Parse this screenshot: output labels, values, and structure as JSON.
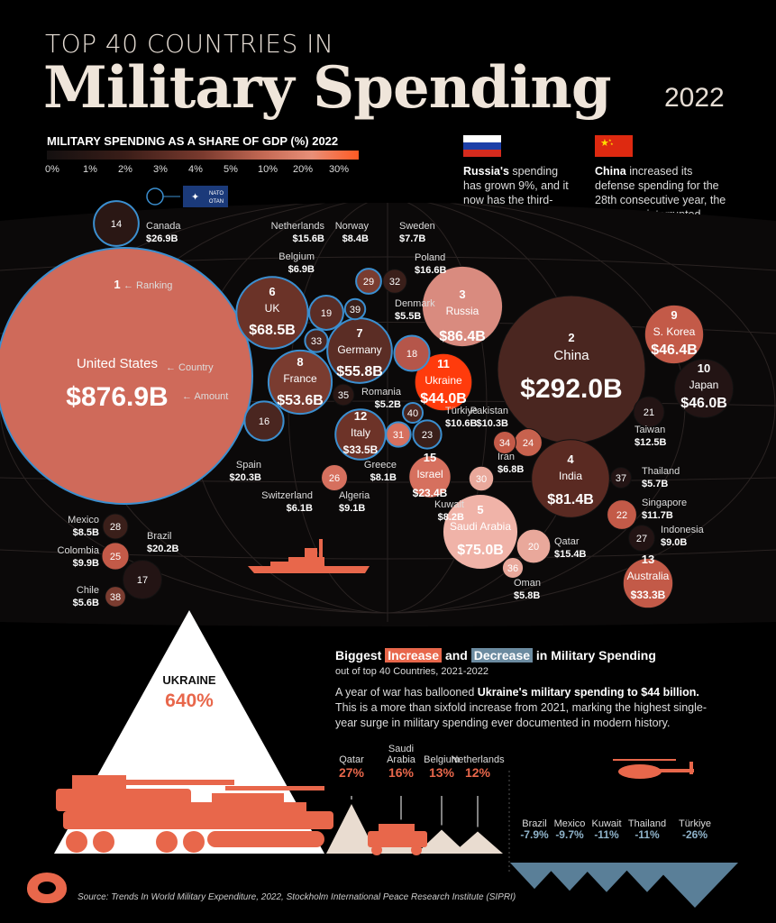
{
  "header": {
    "top": "TOP 40 COUNTRIES IN",
    "main": "Military Spending",
    "year": "2022"
  },
  "legend": {
    "title": "MILITARY SPENDING AS A SHARE OF GDP (%) 2022",
    "ticks": [
      "0%",
      "1%",
      "2%",
      "3%",
      "4%",
      "5%",
      "10%",
      "20%",
      "30%"
    ],
    "colors": {
      "low": "#141010",
      "mid": "#7a3a2e",
      "high": "#e88f78",
      "max": "#ff5a23"
    }
  },
  "nato": {
    "label": "NATO OTAN"
  },
  "notes": {
    "russia": {
      "bold": "Russia's",
      "text": " spending has grown 9%, and it now has the third-largest military budget, overtaking India."
    },
    "china": {
      "bold": "China",
      "text": " increased its defense spending for the 28th consecutive year, the longest uninterrupted period of spending growth by a country."
    }
  },
  "labels": {
    "ranking": "Ranking",
    "country": "Country",
    "amount": "Amount"
  },
  "chart_data": [
    {
      "type": "bubble",
      "title": "TOP 40 COUNTRIES IN Military Spending 2022",
      "countries": [
        {
          "rank": 1,
          "name": "United States",
          "amount": "$876.9B",
          "value": 876.9,
          "nato": true
        },
        {
          "rank": 2,
          "name": "China",
          "amount": "$292.0B",
          "value": 292.0,
          "nato": false
        },
        {
          "rank": 3,
          "name": "Russia",
          "amount": "$86.4B",
          "value": 86.4,
          "nato": false
        },
        {
          "rank": 4,
          "name": "India",
          "amount": "$81.4B",
          "value": 81.4,
          "nato": false
        },
        {
          "rank": 5,
          "name": "Saudi Arabia",
          "amount": "$75.0B",
          "value": 75.0,
          "nato": false
        },
        {
          "rank": 6,
          "name": "UK",
          "amount": "$68.5B",
          "value": 68.5,
          "nato": true
        },
        {
          "rank": 7,
          "name": "Germany",
          "amount": "$55.8B",
          "value": 55.8,
          "nato": true
        },
        {
          "rank": 8,
          "name": "France",
          "amount": "$53.6B",
          "value": 53.6,
          "nato": true
        },
        {
          "rank": 9,
          "name": "S. Korea",
          "amount": "$46.4B",
          "value": 46.4,
          "nato": false
        },
        {
          "rank": 10,
          "name": "Japan",
          "amount": "$46.0B",
          "value": 46.0,
          "nato": false
        },
        {
          "rank": 11,
          "name": "Ukraine",
          "amount": "$44.0B",
          "value": 44.0,
          "nato": false
        },
        {
          "rank": 12,
          "name": "Italy",
          "amount": "$33.5B",
          "value": 33.5,
          "nato": true
        },
        {
          "rank": 13,
          "name": "Australia",
          "amount": "$33.3B",
          "value": 33.3,
          "nato": false
        },
        {
          "rank": 14,
          "name": "Canada",
          "amount": "$26.9B",
          "value": 26.9,
          "nato": true
        },
        {
          "rank": 15,
          "name": "Israel",
          "amount": "$23.4B",
          "value": 23.4,
          "nato": false
        },
        {
          "rank": 16,
          "name": "Spain",
          "amount": "$20.3B",
          "value": 20.3,
          "nato": true
        },
        {
          "rank": 17,
          "name": "Brazil",
          "amount": "$20.2B",
          "value": 20.2,
          "nato": false
        },
        {
          "rank": 18,
          "name": "Poland",
          "amount": "$16.6B",
          "value": 16.6,
          "nato": true
        },
        {
          "rank": 19,
          "name": "Netherlands",
          "amount": "$15.6B",
          "value": 15.6,
          "nato": true
        },
        {
          "rank": 20,
          "name": "Qatar",
          "amount": "$15.4B",
          "value": 15.4,
          "nato": false
        },
        {
          "rank": 21,
          "name": "Taiwan",
          "amount": "$12.5B",
          "value": 12.5,
          "nato": false
        },
        {
          "rank": 22,
          "name": "Singapore",
          "amount": "$11.7B",
          "value": 11.7,
          "nato": false
        },
        {
          "rank": 23,
          "name": "Türkiye",
          "amount": "$10.6B",
          "value": 10.6,
          "nato": true
        },
        {
          "rank": 24,
          "name": "Pakistan",
          "amount": "$10.3B",
          "value": 10.3,
          "nato": false
        },
        {
          "rank": 25,
          "name": "Colombia",
          "amount": "$9.9B",
          "value": 9.9,
          "nato": false
        },
        {
          "rank": 26,
          "name": "Algeria",
          "amount": "$9.1B",
          "value": 9.1,
          "nato": false
        },
        {
          "rank": 27,
          "name": "Indonesia",
          "amount": "$9.0B",
          "value": 9.0,
          "nato": false
        },
        {
          "rank": 28,
          "name": "Mexico",
          "amount": "$8.5B",
          "value": 8.5,
          "nato": false
        },
        {
          "rank": 29,
          "name": "Norway",
          "amount": "$8.4B",
          "value": 8.4,
          "nato": true
        },
        {
          "rank": 30,
          "name": "Kuwait",
          "amount": "$8.2B",
          "value": 8.2,
          "nato": false
        },
        {
          "rank": 31,
          "name": "Greece",
          "amount": "$8.1B",
          "value": 8.1,
          "nato": true
        },
        {
          "rank": 32,
          "name": "Sweden",
          "amount": "$7.7B",
          "value": 7.7,
          "nato": false
        },
        {
          "rank": 33,
          "name": "Belgium",
          "amount": "$6.9B",
          "value": 6.9,
          "nato": true
        },
        {
          "rank": 34,
          "name": "Iran",
          "amount": "$6.8B",
          "value": 6.8,
          "nato": false
        },
        {
          "rank": 35,
          "name": "Switzerland",
          "amount": "$6.1B",
          "value": 6.1,
          "nato": false
        },
        {
          "rank": 36,
          "name": "Oman",
          "amount": "$5.8B",
          "value": 5.8,
          "nato": false
        },
        {
          "rank": 37,
          "name": "Thailand",
          "amount": "$5.7B",
          "value": 5.7,
          "nato": false
        },
        {
          "rank": 38,
          "name": "Chile",
          "amount": "$5.6B",
          "value": 5.6,
          "nato": false
        },
        {
          "rank": 39,
          "name": "Denmark",
          "amount": "$5.5B",
          "value": 5.5,
          "nato": true
        },
        {
          "rank": 40,
          "name": "Romania",
          "amount": "$5.2B",
          "value": 5.2,
          "nato": true
        }
      ]
    },
    {
      "type": "bar",
      "title": "Biggest Increase and Decrease in Military Spending",
      "subtitle": "out of top 40 Countries, 2021-2022",
      "categories": [
        "Ukraine",
        "Qatar",
        "Saudi Arabia",
        "Belgium",
        "Netherlands",
        "Brazil",
        "Mexico",
        "Kuwait",
        "Thailand",
        "Türkiye"
      ],
      "values": [
        640,
        27,
        16,
        13,
        12,
        -7.9,
        -9.7,
        -11,
        -11,
        -26
      ],
      "value_labels": [
        "640%",
        "27%",
        "16%",
        "13%",
        "12%",
        "-7.9%",
        "-9.7%",
        "-11%",
        "-11%",
        "-26%"
      ],
      "colors": {
        "increase": "#e8674b",
        "decrease": "#5a7f98"
      }
    }
  ],
  "section2": {
    "title_a": "Biggest ",
    "title_inc": "Increase",
    "title_b": " and ",
    "title_dec": "Decrease",
    "title_c": " in Military Spending",
    "subtitle": "out of top 40 Countries, 2021-2022",
    "desc_a": "A year of war has ballooned ",
    "desc_bold": "Ukraine's military spending to $44 billion.",
    "desc_b": " This is a more than sixfold increase from 2021, marking the highest single-year surge in military spending ever documented in modern history.",
    "ukraine_name": "UKRAINE",
    "ukraine_value": "640%"
  },
  "source": "Source: Trends In World Military Expenditure, 2022, Stockholm International Peace Research Institute (SIPRI)"
}
